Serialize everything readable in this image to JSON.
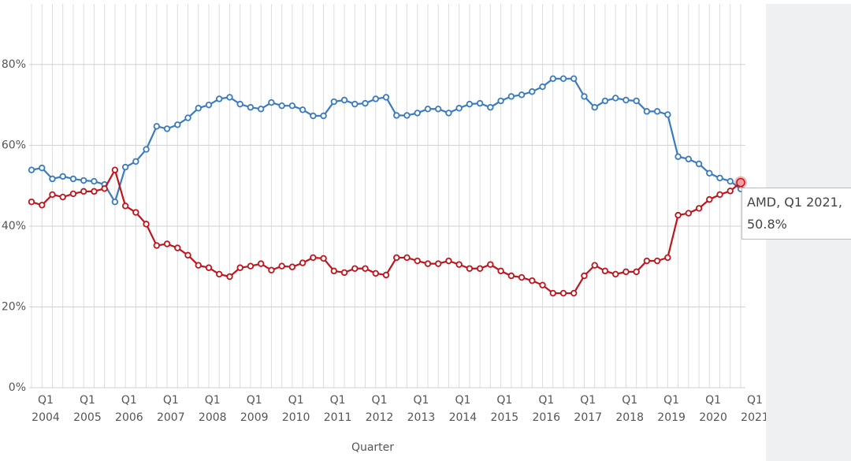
{
  "chart_data": {
    "type": "line",
    "x_label": "Quarter",
    "categories": [
      "Q1 2004",
      null,
      null,
      null,
      "Q1 2005",
      null,
      null,
      null,
      "Q1 2006",
      null,
      null,
      null,
      "Q1 2007",
      null,
      null,
      null,
      "Q1 2008",
      null,
      null,
      null,
      "Q1 2009",
      null,
      null,
      null,
      "Q1 2010",
      null,
      null,
      null,
      "Q1 2011",
      null,
      null,
      null,
      "Q1 2012",
      null,
      null,
      null,
      "Q1 2013",
      null,
      null,
      null,
      "Q1 2014",
      null,
      null,
      null,
      "Q1 2015",
      null,
      null,
      null,
      "Q1 2016",
      null,
      null,
      null,
      "Q1 2017",
      null,
      null,
      null,
      "Q1 2018",
      null,
      null,
      null,
      "Q1 2019",
      null,
      null,
      null,
      "Q1 2020",
      null,
      null,
      null,
      "Q1 2021"
    ],
    "series": [
      {
        "color": "#3a7bbf",
        "values": [
          53.9,
          54.4,
          51.7,
          52.3,
          51.7,
          51.3,
          51.1,
          50.3,
          46.0,
          54.6,
          56.0,
          59.0,
          64.7,
          64.1,
          65.1,
          66.8,
          69.2,
          70.0,
          71.5,
          71.9,
          70.2,
          69.4,
          69.0,
          70.6,
          69.8,
          69.8,
          68.8,
          67.3,
          67.3,
          70.8,
          71.2,
          70.2,
          70.4,
          71.5,
          71.9,
          67.4,
          67.4,
          68.0,
          69.0,
          69.0,
          68.0,
          69.2,
          70.2,
          70.4,
          69.4,
          71.0,
          72.1,
          72.5,
          73.3,
          74.5,
          76.5,
          76.5,
          76.5,
          72.1,
          69.4,
          71.0,
          71.7,
          71.2,
          71.0,
          68.4,
          68.4,
          67.6,
          57.2,
          56.6,
          55.4,
          53.1,
          51.9,
          51.1,
          49.2
        ]
      },
      {
        "name": "AMD",
        "color": "#c0141c",
        "values": [
          46.0,
          45.2,
          47.8,
          47.2,
          48.0,
          48.6,
          48.6,
          49.3,
          53.9,
          45.0,
          43.4,
          40.5,
          35.2,
          35.6,
          34.6,
          32.8,
          30.3,
          29.7,
          28.1,
          27.5,
          29.7,
          30.1,
          30.7,
          29.1,
          30.1,
          29.9,
          30.9,
          32.2,
          32.0,
          28.9,
          28.5,
          29.5,
          29.5,
          28.3,
          27.9,
          32.2,
          32.2,
          31.4,
          30.7,
          30.7,
          31.4,
          30.5,
          29.5,
          29.5,
          30.5,
          28.9,
          27.7,
          27.3,
          26.5,
          25.4,
          23.4,
          23.4,
          23.4,
          27.7,
          30.3,
          28.9,
          28.1,
          28.7,
          28.7,
          31.4,
          31.4,
          32.2,
          42.7,
          43.2,
          44.4,
          46.6,
          47.8,
          48.7,
          50.8
        ]
      }
    ],
    "ylim": [
      0,
      95
    ],
    "yticks": [
      {
        "value": 0,
        "label": "0%"
      },
      {
        "value": 20,
        "label": "20%"
      },
      {
        "value": 40,
        "label": "40%"
      },
      {
        "value": 60,
        "label": "60%"
      },
      {
        "value": 80,
        "label": "80%"
      }
    ],
    "grid": true,
    "tooltip": {
      "series": 1,
      "index": 68,
      "text": "AMD, Q1 2021, 50.8%"
    }
  }
}
